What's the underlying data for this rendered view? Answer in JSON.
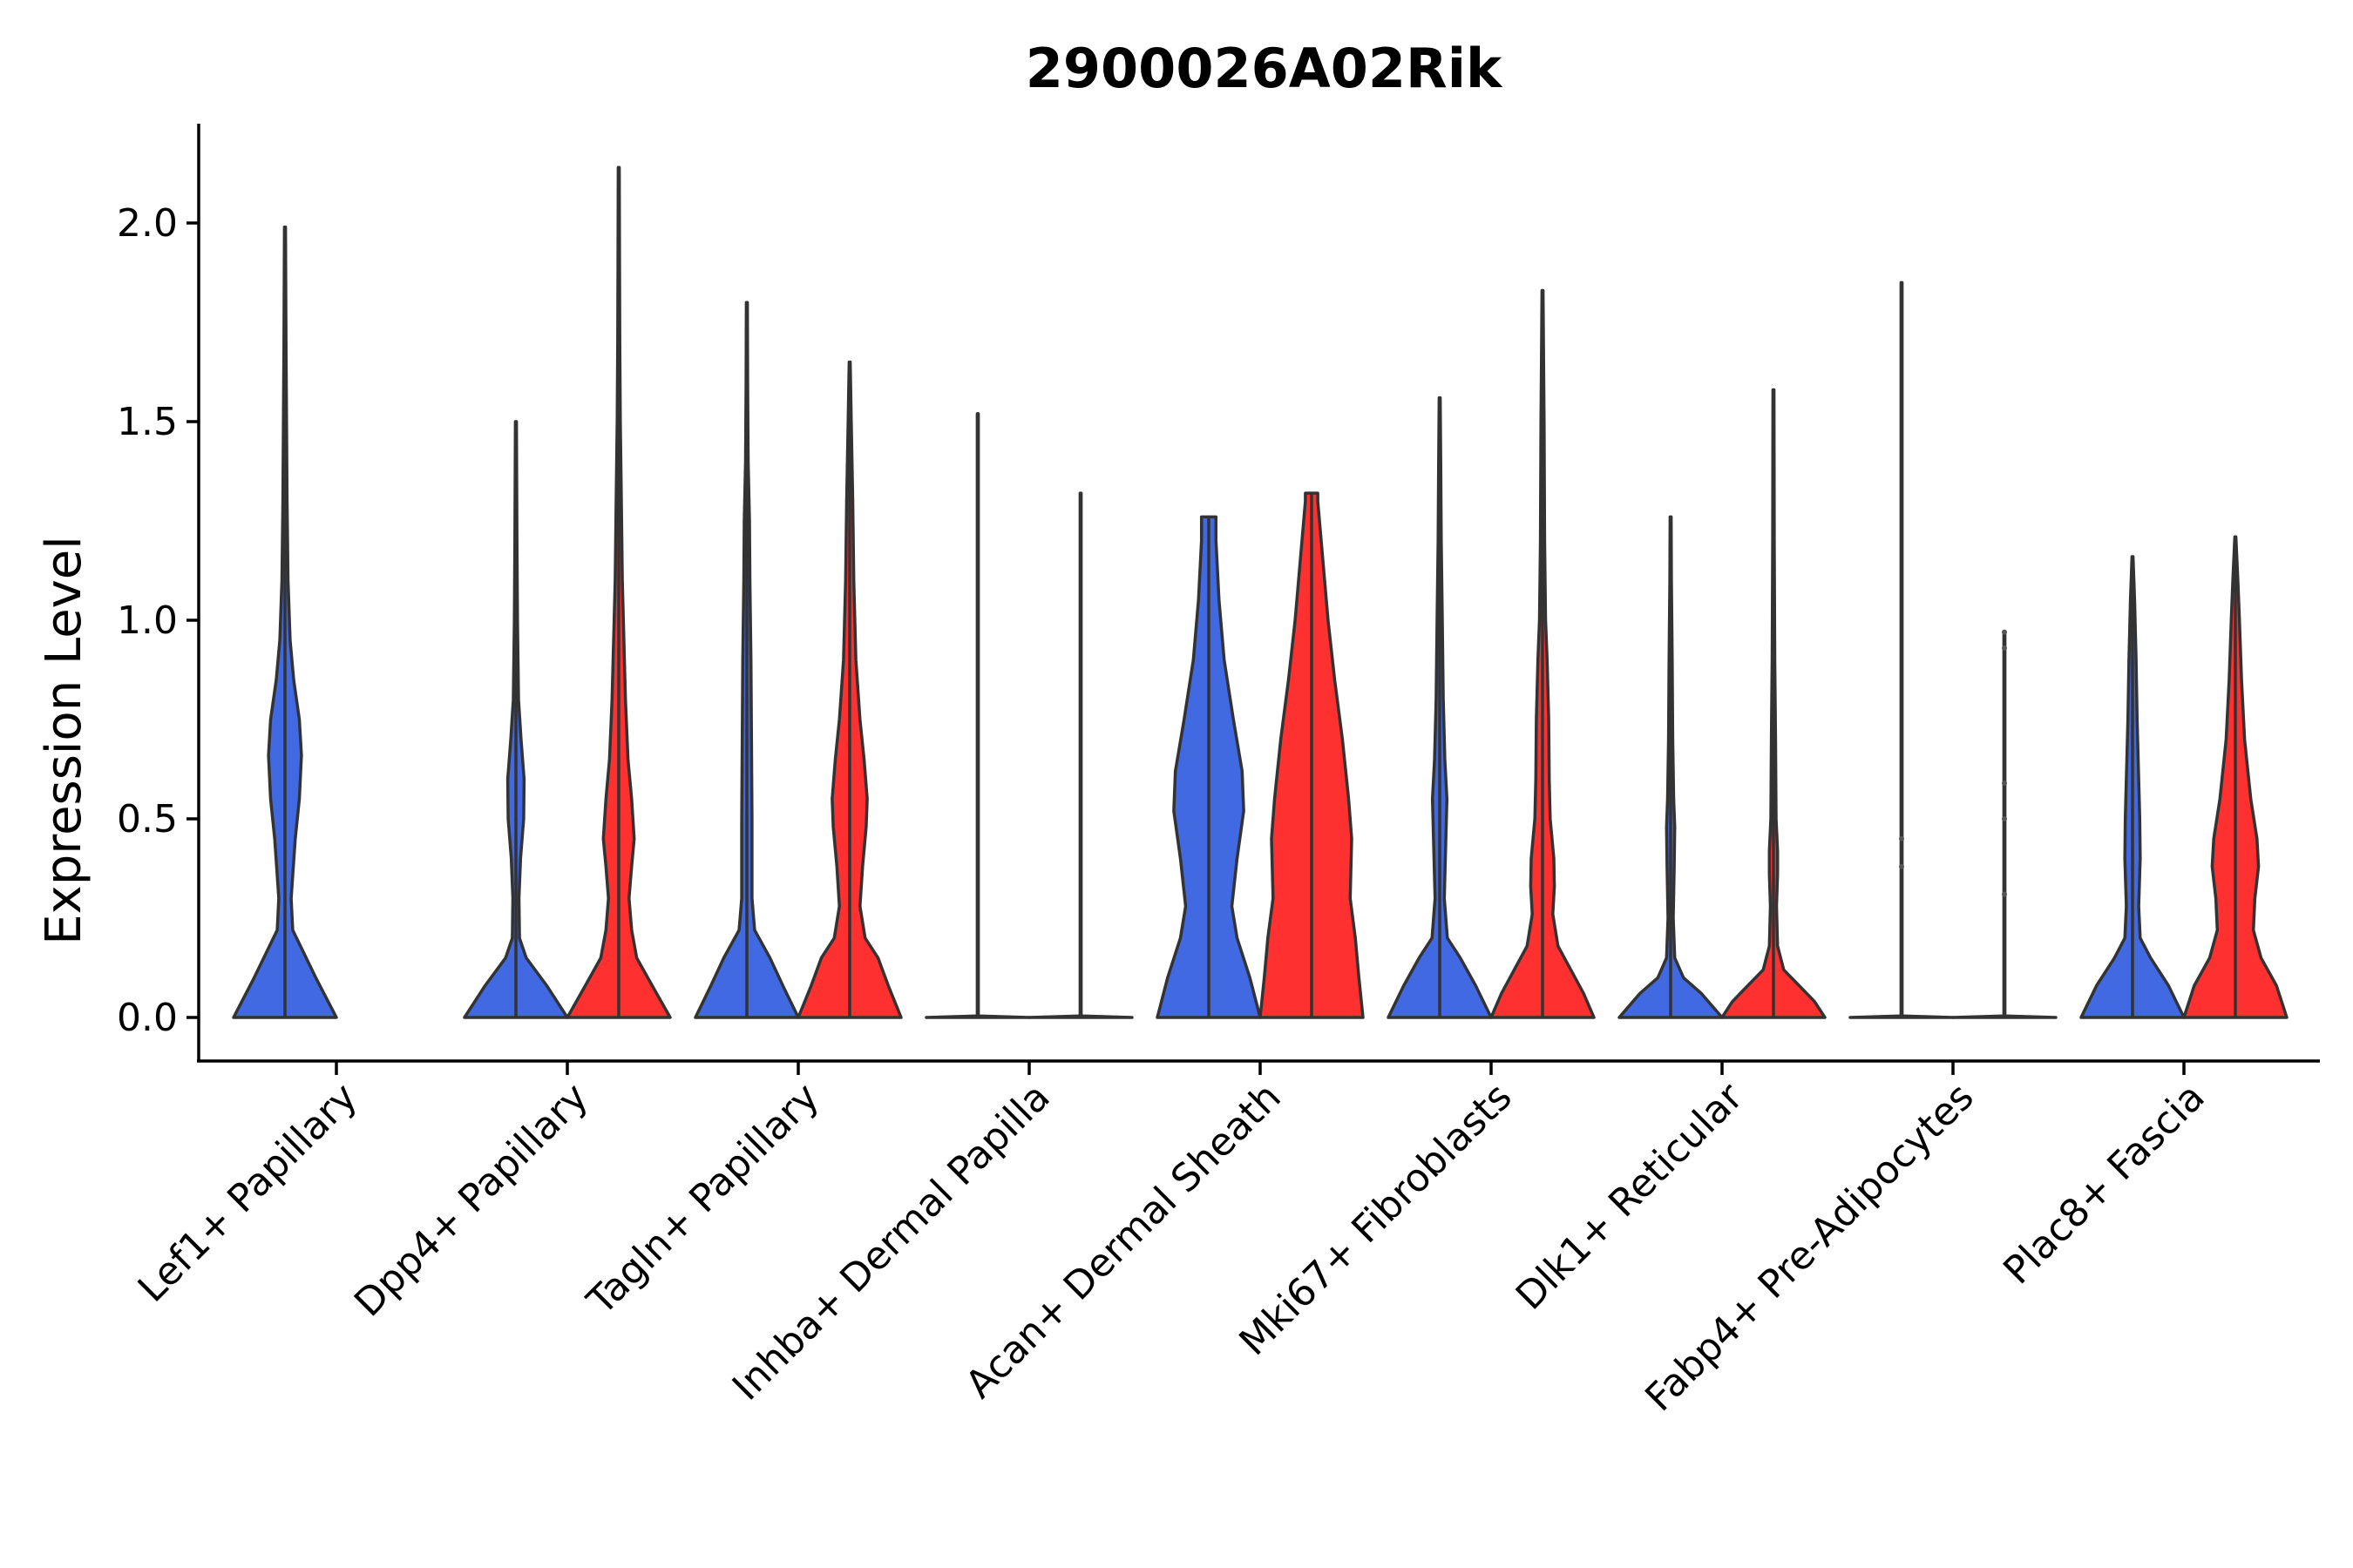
{
  "chart_data": {
    "type": "violin",
    "title": "2900026A02Rik",
    "xlabel": "",
    "ylabel": "Expression Level",
    "ylim": [
      -0.1,
      2.25
    ],
    "yticks": [
      0.0,
      0.5,
      1.0,
      1.5,
      2.0
    ],
    "ytick_labels": [
      "0.0",
      "0.5",
      "1.0",
      "1.5",
      "2.0"
    ],
    "grid": false,
    "legend": "none",
    "colors": {
      "group1": "#4169E1",
      "group2": "#FF3030",
      "outline": "#333333"
    },
    "categories": [
      "Lef1+ Papillary",
      "Dpp4+ Papillary",
      "Tagln+ Papillary",
      "Inhba+ Dermal Papilla",
      "Acan+ Dermal Sheath",
      "Mki67+ Fibroblasts",
      "Dlk1+ Reticular",
      "Fabp4+ Pre-Adipocytes",
      "Plac8+ Fascia"
    ],
    "violins": [
      {
        "category": "Lef1+ Papillary",
        "group": "blue",
        "color": "#4169E1",
        "max": 1.99,
        "profile": [
          [
            0,
            1
          ],
          [
            0.1,
            0.6
          ],
          [
            0.18,
            0.3
          ],
          [
            0.22,
            0.15
          ],
          [
            0.3,
            0.12
          ],
          [
            0.45,
            0.2
          ],
          [
            0.55,
            0.28
          ],
          [
            0.66,
            0.32
          ],
          [
            0.75,
            0.28
          ],
          [
            0.85,
            0.17
          ],
          [
            0.95,
            0.1
          ],
          [
            1.1,
            0.06
          ],
          [
            1.3,
            0.04
          ],
          [
            1.5,
            0.03
          ],
          [
            1.7,
            0.02
          ],
          [
            1.85,
            0.015
          ],
          [
            1.99,
            0.01
          ]
        ]
      },
      {
        "category": "Dpp4+ Papillary",
        "group": "blue",
        "color": "#4169E1",
        "max": 1.5,
        "profile": [
          [
            0,
            1
          ],
          [
            0.08,
            0.6
          ],
          [
            0.15,
            0.2
          ],
          [
            0.2,
            0.07
          ],
          [
            0.3,
            0.06
          ],
          [
            0.4,
            0.09
          ],
          [
            0.5,
            0.15
          ],
          [
            0.6,
            0.16
          ],
          [
            0.7,
            0.1
          ],
          [
            0.8,
            0.05
          ],
          [
            1.0,
            0.03
          ],
          [
            1.2,
            0.02
          ],
          [
            1.35,
            0.015
          ],
          [
            1.5,
            0.01
          ]
        ]
      },
      {
        "category": "Dpp4+ Papillary",
        "group": "red",
        "color": "#FF3030",
        "max": 2.14,
        "profile": [
          [
            0,
            1
          ],
          [
            0.08,
            0.65
          ],
          [
            0.15,
            0.35
          ],
          [
            0.22,
            0.25
          ],
          [
            0.3,
            0.2
          ],
          [
            0.38,
            0.25
          ],
          [
            0.45,
            0.3
          ],
          [
            0.55,
            0.25
          ],
          [
            0.65,
            0.18
          ],
          [
            0.8,
            0.13
          ],
          [
            0.95,
            0.1
          ],
          [
            1.1,
            0.07
          ],
          [
            1.3,
            0.05
          ],
          [
            1.5,
            0.03
          ],
          [
            1.7,
            0.02
          ],
          [
            1.9,
            0.015
          ],
          [
            2.14,
            0.01
          ]
        ]
      },
      {
        "category": "Tagln+ Papillary",
        "group": "blue",
        "color": "#4169E1",
        "max": 1.8,
        "profile": [
          [
            0,
            1
          ],
          [
            0.08,
            0.7
          ],
          [
            0.15,
            0.45
          ],
          [
            0.22,
            0.15
          ],
          [
            0.3,
            0.1
          ],
          [
            0.5,
            0.1
          ],
          [
            0.7,
            0.09
          ],
          [
            0.9,
            0.08
          ],
          [
            1.1,
            0.06
          ],
          [
            1.25,
            0.05
          ],
          [
            1.4,
            0.025
          ],
          [
            1.6,
            0.015
          ],
          [
            1.8,
            0.01
          ]
        ]
      },
      {
        "category": "Tagln+ Papillary",
        "group": "red",
        "color": "#FF3030",
        "max": 1.65,
        "profile": [
          [
            0,
            1
          ],
          [
            0.08,
            0.75
          ],
          [
            0.15,
            0.55
          ],
          [
            0.2,
            0.3
          ],
          [
            0.28,
            0.2
          ],
          [
            0.38,
            0.25
          ],
          [
            0.48,
            0.32
          ],
          [
            0.55,
            0.34
          ],
          [
            0.65,
            0.28
          ],
          [
            0.75,
            0.2
          ],
          [
            0.9,
            0.12
          ],
          [
            1.1,
            0.08
          ],
          [
            1.3,
            0.06
          ],
          [
            1.5,
            0.03
          ],
          [
            1.65,
            0.01
          ]
        ]
      },
      {
        "category": "Inhba+ Dermal Papilla",
        "group": "blue",
        "color": "#4169E1",
        "max": 1.52,
        "profile": [
          [
            0,
            1
          ],
          [
            0.004,
            0.01
          ],
          [
            1.52,
            0.01
          ]
        ]
      },
      {
        "category": "Inhba+ Dermal Papilla",
        "group": "red",
        "color": "#FF3030",
        "max": 1.32,
        "profile": [
          [
            0,
            1
          ],
          [
            0.004,
            0.01
          ],
          [
            1.32,
            0.01
          ]
        ]
      },
      {
        "category": "Acan+ Dermal Sheath",
        "group": "blue",
        "color": "#4169E1",
        "max": 1.26,
        "profile": [
          [
            0,
            1
          ],
          [
            0.1,
            0.8
          ],
          [
            0.2,
            0.55
          ],
          [
            0.28,
            0.45
          ],
          [
            0.4,
            0.55
          ],
          [
            0.52,
            0.68
          ],
          [
            0.62,
            0.65
          ],
          [
            0.75,
            0.48
          ],
          [
            0.9,
            0.3
          ],
          [
            1.05,
            0.2
          ],
          [
            1.2,
            0.14
          ],
          [
            1.26,
            0.14
          ]
        ]
      },
      {
        "category": "Acan+ Dermal Sheath",
        "group": "red",
        "color": "#FF3030",
        "max": 1.32,
        "profile": [
          [
            0,
            1
          ],
          [
            0.1,
            0.92
          ],
          [
            0.2,
            0.85
          ],
          [
            0.3,
            0.75
          ],
          [
            0.45,
            0.78
          ],
          [
            0.55,
            0.72
          ],
          [
            0.7,
            0.6
          ],
          [
            0.85,
            0.45
          ],
          [
            1.0,
            0.32
          ],
          [
            1.15,
            0.22
          ],
          [
            1.3,
            0.12
          ],
          [
            1.32,
            0.12
          ]
        ]
      },
      {
        "category": "Mki67+ Fibroblasts",
        "group": "blue",
        "color": "#4169E1",
        "max": 1.56,
        "profile": [
          [
            0,
            1
          ],
          [
            0.08,
            0.7
          ],
          [
            0.15,
            0.4
          ],
          [
            0.2,
            0.15
          ],
          [
            0.3,
            0.09
          ],
          [
            0.45,
            0.12
          ],
          [
            0.55,
            0.14
          ],
          [
            0.65,
            0.1
          ],
          [
            0.8,
            0.07
          ],
          [
            1.0,
            0.05
          ],
          [
            1.2,
            0.03
          ],
          [
            1.4,
            0.02
          ],
          [
            1.56,
            0.01
          ]
        ]
      },
      {
        "category": "Mki67+ Fibroblasts",
        "group": "red",
        "color": "#FF3030",
        "max": 1.83,
        "profile": [
          [
            0,
            1
          ],
          [
            0.06,
            0.8
          ],
          [
            0.12,
            0.55
          ],
          [
            0.18,
            0.3
          ],
          [
            0.26,
            0.2
          ],
          [
            0.33,
            0.23
          ],
          [
            0.4,
            0.22
          ],
          [
            0.5,
            0.15
          ],
          [
            0.6,
            0.13
          ],
          [
            0.75,
            0.12
          ],
          [
            0.9,
            0.09
          ],
          [
            1.0,
            0.06
          ],
          [
            1.2,
            0.04
          ],
          [
            1.5,
            0.03
          ],
          [
            1.83,
            0.01
          ]
        ]
      },
      {
        "category": "Dlk1+ Reticular",
        "group": "blue",
        "color": "#4169E1",
        "max": 1.26,
        "profile": [
          [
            0,
            1
          ],
          [
            0.03,
            0.8
          ],
          [
            0.06,
            0.6
          ],
          [
            0.1,
            0.25
          ],
          [
            0.15,
            0.08
          ],
          [
            0.25,
            0.05
          ],
          [
            0.38,
            0.07
          ],
          [
            0.48,
            0.08
          ],
          [
            0.55,
            0.06
          ],
          [
            0.7,
            0.04
          ],
          [
            0.9,
            0.03
          ],
          [
            1.1,
            0.015
          ],
          [
            1.26,
            0.01
          ]
        ]
      },
      {
        "category": "Dlk1+ Reticular",
        "group": "red",
        "color": "#FF3030",
        "max": 1.58,
        "profile": [
          [
            0,
            1
          ],
          [
            0.04,
            0.8
          ],
          [
            0.08,
            0.5
          ],
          [
            0.12,
            0.2
          ],
          [
            0.18,
            0.08
          ],
          [
            0.28,
            0.06
          ],
          [
            0.36,
            0.08
          ],
          [
            0.42,
            0.08
          ],
          [
            0.5,
            0.05
          ],
          [
            0.7,
            0.04
          ],
          [
            0.9,
            0.025
          ],
          [
            1.2,
            0.015
          ],
          [
            1.58,
            0.01
          ]
        ]
      },
      {
        "category": "Fabp4+ Pre-Adipocytes",
        "group": "blue",
        "color": "#4169E1",
        "max": 1.85,
        "profile": [
          [
            0,
            1
          ],
          [
            0.004,
            0.01
          ],
          [
            1.85,
            0.01
          ]
        ],
        "outliers": [
          0.45,
          0.38
        ]
      },
      {
        "category": "Fabp4+ Pre-Adipocytes",
        "group": "red",
        "color": "#FF3030",
        "max": 0.97,
        "profile": [
          [
            0,
            1
          ],
          [
            0.004,
            0.01
          ],
          [
            0.97,
            0.01
          ]
        ],
        "outliers": [
          0.97,
          0.93,
          0.59,
          0.5,
          0.31
        ]
      },
      {
        "category": "Plac8+ Fascia",
        "group": "blue",
        "color": "#4169E1",
        "max": 1.16,
        "profile": [
          [
            0,
            1
          ],
          [
            0.08,
            0.7
          ],
          [
            0.15,
            0.35
          ],
          [
            0.2,
            0.15
          ],
          [
            0.28,
            0.12
          ],
          [
            0.4,
            0.15
          ],
          [
            0.5,
            0.14
          ],
          [
            0.6,
            0.12
          ],
          [
            0.75,
            0.09
          ],
          [
            0.9,
            0.07
          ],
          [
            1.05,
            0.04
          ],
          [
            1.16,
            0.01
          ]
        ]
      },
      {
        "category": "Plac8+ Fascia",
        "group": "red",
        "color": "#FF3030",
        "max": 1.21,
        "profile": [
          [
            0,
            1
          ],
          [
            0.08,
            0.8
          ],
          [
            0.15,
            0.5
          ],
          [
            0.22,
            0.35
          ],
          [
            0.3,
            0.38
          ],
          [
            0.38,
            0.45
          ],
          [
            0.45,
            0.42
          ],
          [
            0.55,
            0.3
          ],
          [
            0.7,
            0.18
          ],
          [
            0.85,
            0.12
          ],
          [
            1.0,
            0.08
          ],
          [
            1.1,
            0.05
          ],
          [
            1.21,
            0.01
          ]
        ]
      }
    ]
  }
}
